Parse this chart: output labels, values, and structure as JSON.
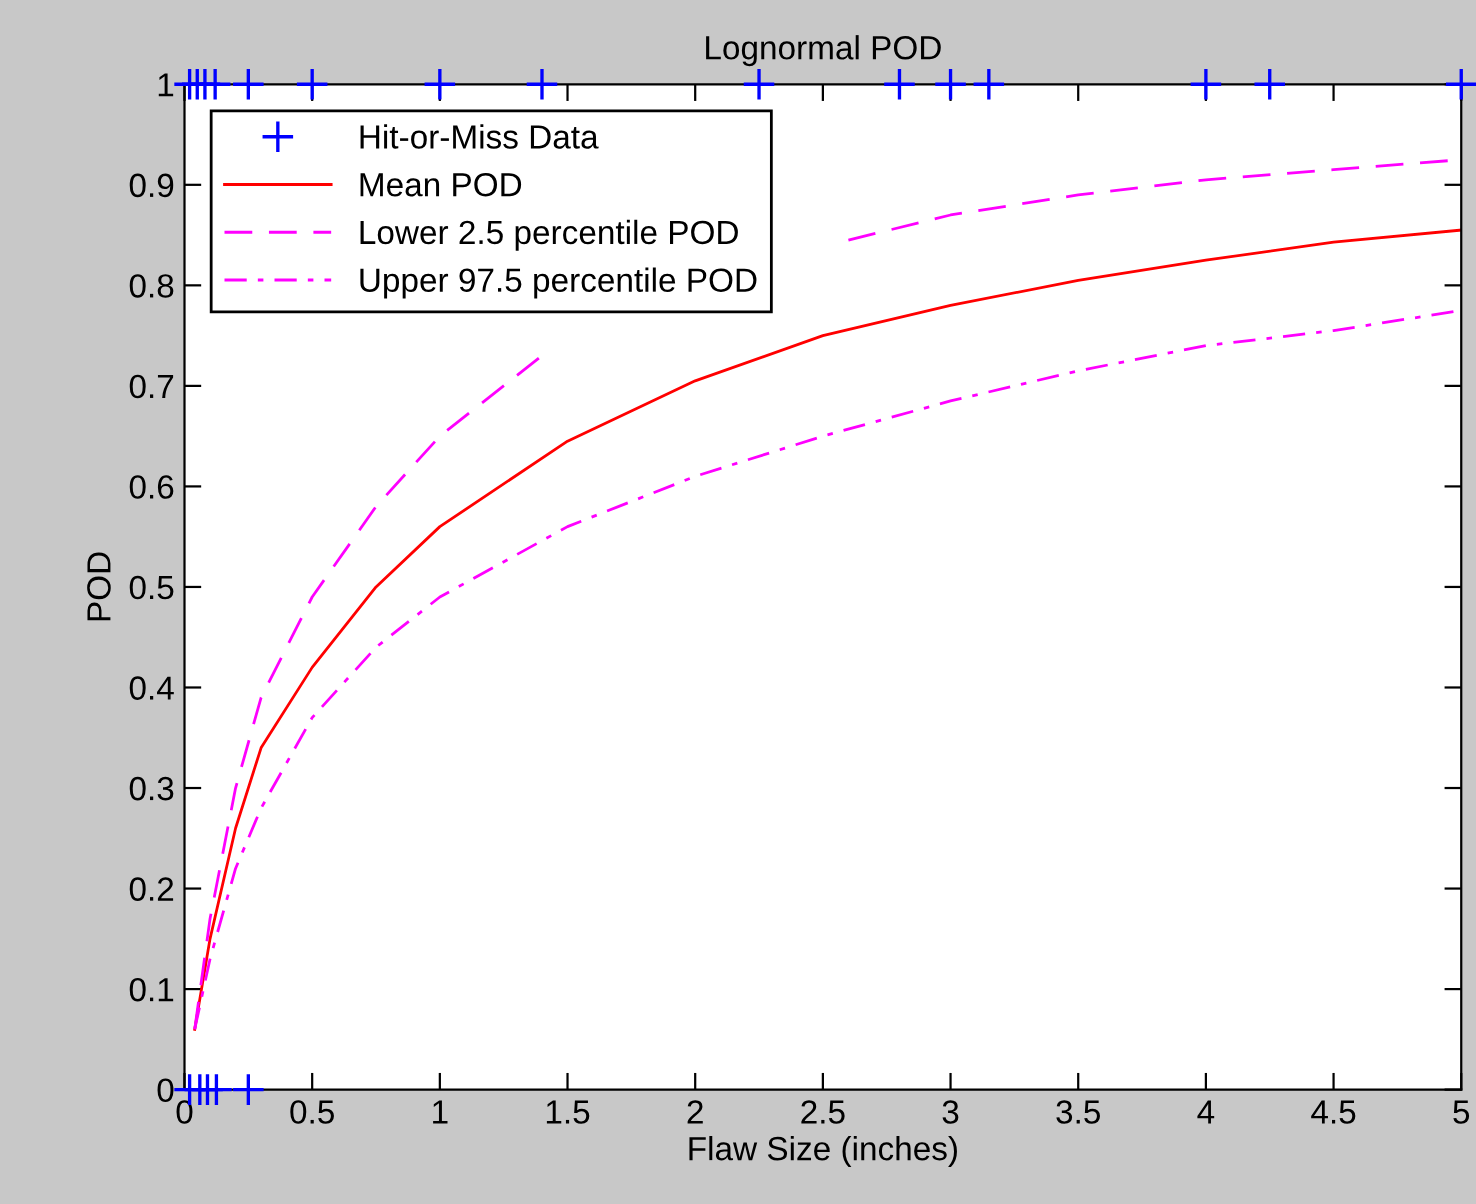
{
  "chart_data": {
    "type": "line",
    "title": "Lognormal POD",
    "xlabel": "Flaw Size (inches)",
    "ylabel": "POD",
    "xlim": [
      0,
      5
    ],
    "ylim": [
      0,
      1
    ],
    "xticks": [
      0,
      0.5,
      1,
      1.5,
      2,
      2.5,
      3,
      3.5,
      4,
      4.5,
      5
    ],
    "yticks": [
      0,
      0.1,
      0.2,
      0.3,
      0.4,
      0.5,
      0.6,
      0.7,
      0.8,
      0.9,
      1
    ],
    "grid": false,
    "legend": "top left",
    "series": [
      {
        "name": "Hit-or-Miss Data",
        "type": "scatter",
        "marker": "cross",
        "color": "#0000ff",
        "x": [
          0.02,
          0.05,
          0.08,
          0.12,
          0.25,
          0.5,
          1,
          1.4,
          2.25,
          2.8,
          3,
          3.15,
          4,
          4.25,
          5,
          0.02,
          0.06,
          0.09,
          0.125,
          0.25
        ],
        "values": [
          1,
          1,
          1,
          1,
          1,
          1,
          1,
          1,
          1,
          1,
          1,
          1,
          1,
          1,
          1,
          0,
          0,
          0,
          0,
          0
        ]
      },
      {
        "name": "Mean POD",
        "line_style": "solid",
        "color": "#ff0000",
        "x": [
          0.04,
          0.1,
          0.2,
          0.3,
          0.5,
          0.75,
          1,
          1.5,
          2,
          2.5,
          3,
          3.5,
          4,
          4.5,
          5
        ],
        "values": [
          0.06,
          0.15,
          0.26,
          0.34,
          0.42,
          0.5,
          0.56,
          0.645,
          0.705,
          0.75,
          0.78,
          0.805,
          0.825,
          0.843,
          0.855
        ]
      },
      {
        "name": "Lower 2.5 percentile POD",
        "line_style": "dashed",
        "color": "#ff00ff",
        "x": [
          0.04,
          0.1,
          0.2,
          0.3,
          0.5,
          0.75,
          1,
          1.4,
          2,
          2.6,
          3,
          3.5,
          4,
          4.5,
          5
        ],
        "values": [
          0.06,
          0.17,
          0.3,
          0.39,
          0.49,
          0.58,
          0.65,
          0.73,
          null,
          0.845,
          0.87,
          0.89,
          0.905,
          0.915,
          0.925
        ]
      },
      {
        "name": "Upper 97.5 percentile POD",
        "line_style": "dashdot",
        "color": "#ff00ff",
        "x": [
          0.04,
          0.1,
          0.2,
          0.3,
          0.5,
          0.75,
          1,
          1.5,
          2,
          2.5,
          3,
          3.5,
          4,
          4.5,
          5
        ],
        "values": [
          0.06,
          0.13,
          0.22,
          0.28,
          0.37,
          0.44,
          0.49,
          0.56,
          0.61,
          0.65,
          0.685,
          0.715,
          0.74,
          0.755,
          0.775
        ]
      }
    ]
  }
}
